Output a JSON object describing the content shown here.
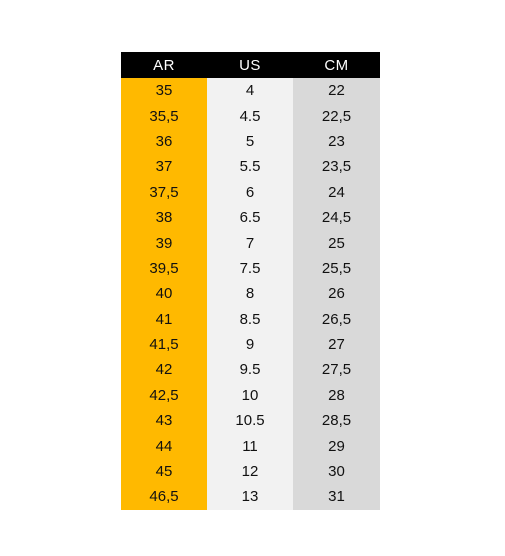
{
  "colors": {
    "header_bg": "#000000",
    "header_text": "#ffffff",
    "ar_column": "#ffb900",
    "us_column": "#f2f2f2",
    "cm_column": "#d9d9d9"
  },
  "headers": [
    "AR",
    "US",
    "CM"
  ],
  "rows": [
    {
      "ar": "35",
      "us": "4",
      "cm": "22"
    },
    {
      "ar": "35,5",
      "us": "4.5",
      "cm": "22,5"
    },
    {
      "ar": "36",
      "us": "5",
      "cm": "23"
    },
    {
      "ar": "37",
      "us": "5.5",
      "cm": "23,5"
    },
    {
      "ar": "37,5",
      "us": "6",
      "cm": "24"
    },
    {
      "ar": "38",
      "us": "6.5",
      "cm": "24,5"
    },
    {
      "ar": "39",
      "us": "7",
      "cm": "25"
    },
    {
      "ar": "39,5",
      "us": "7.5",
      "cm": "25,5"
    },
    {
      "ar": "40",
      "us": "8",
      "cm": "26"
    },
    {
      "ar": "41",
      "us": "8.5",
      "cm": "26,5"
    },
    {
      "ar": "41,5",
      "us": "9",
      "cm": "27"
    },
    {
      "ar": "42",
      "us": "9.5",
      "cm": "27,5"
    },
    {
      "ar": "42,5",
      "us": "10",
      "cm": "28"
    },
    {
      "ar": "43",
      "us": "10.5",
      "cm": "28,5"
    },
    {
      "ar": "44",
      "us": "11",
      "cm": "29"
    },
    {
      "ar": "45",
      "us": "12",
      "cm": "30"
    },
    {
      "ar": "46,5",
      "us": "13",
      "cm": "31"
    }
  ]
}
